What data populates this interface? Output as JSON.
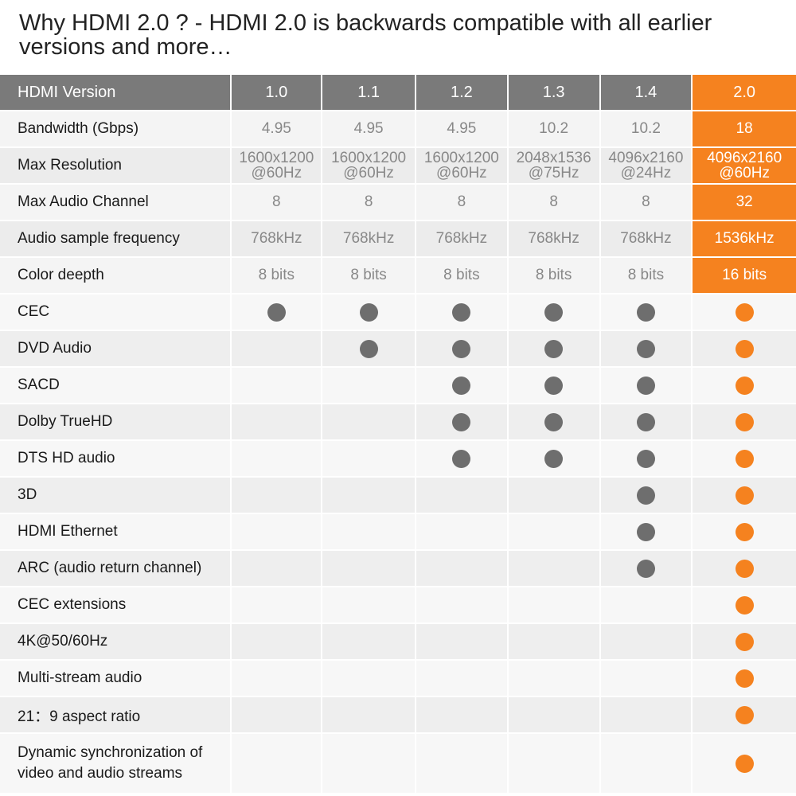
{
  "title": "Why HDMI 2.0 ? - HDMI 2.0 is backwards compatible with all earlier versions and more…",
  "colors": {
    "accent": "#f5821f",
    "header_gray": "#7a7a7a",
    "dot_gray": "#6e6e6e"
  },
  "header": {
    "label": "HDMI Version",
    "versions": [
      "1.0",
      "1.1",
      "1.2",
      "1.3",
      "1.4",
      "2.0"
    ]
  },
  "spec_rows": [
    {
      "label": "Bandwidth (Gbps)",
      "values": [
        "4.95",
        "4.95",
        "4.95",
        "10.2",
        "10.2",
        "18"
      ]
    },
    {
      "label": "Max Resolution",
      "values_line1": [
        "1600x1200",
        "1600x1200",
        "1600x1200",
        "2048x1536",
        "4096x2160",
        "4096x2160"
      ],
      "values_line2": [
        "@60Hz",
        "@60Hz",
        "@60Hz",
        "@75Hz",
        "@24Hz",
        "@60Hz"
      ]
    },
    {
      "label": "Max Audio Channel",
      "values": [
        "8",
        "8",
        "8",
        "8",
        "8",
        "32"
      ]
    },
    {
      "label": "Audio sample frequency",
      "values": [
        "768kHz",
        "768kHz",
        "768kHz",
        "768kHz",
        "768kHz",
        "1536kHz"
      ]
    },
    {
      "label": "Color deepth",
      "values": [
        "8 bits",
        "8 bits",
        "8 bits",
        "8 bits",
        "8 bits",
        "16 bits"
      ]
    }
  ],
  "feature_rows": [
    {
      "label": "CEC",
      "support": [
        true,
        true,
        true,
        true,
        true,
        true
      ]
    },
    {
      "label": "DVD Audio",
      "support": [
        false,
        true,
        true,
        true,
        true,
        true
      ]
    },
    {
      "label": "SACD",
      "support": [
        false,
        false,
        true,
        true,
        true,
        true
      ]
    },
    {
      "label": "Dolby TrueHD",
      "support": [
        false,
        false,
        true,
        true,
        true,
        true
      ]
    },
    {
      "label": "DTS HD audio",
      "support": [
        false,
        false,
        true,
        true,
        true,
        true
      ]
    },
    {
      "label": "3D",
      "support": [
        false,
        false,
        false,
        false,
        true,
        true
      ]
    },
    {
      "label": "HDMI Ethernet",
      "support": [
        false,
        false,
        false,
        false,
        true,
        true
      ]
    },
    {
      "label": "ARC (audio return channel)",
      "support": [
        false,
        false,
        false,
        false,
        true,
        true
      ]
    },
    {
      "label": "CEC extensions",
      "support": [
        false,
        false,
        false,
        false,
        false,
        true
      ]
    },
    {
      "label": "4K@50/60Hz",
      "support": [
        false,
        false,
        false,
        false,
        false,
        true
      ]
    },
    {
      "label": "Multi-stream audio",
      "support": [
        false,
        false,
        false,
        false,
        false,
        true
      ]
    },
    {
      "label": "21：9  aspect ratio",
      "support": [
        false,
        false,
        false,
        false,
        false,
        true
      ]
    },
    {
      "label_line1": "Dynamic synchronization of",
      "label_line2": "video and audio streams",
      "support": [
        false,
        false,
        false,
        false,
        false,
        true
      ]
    }
  ]
}
